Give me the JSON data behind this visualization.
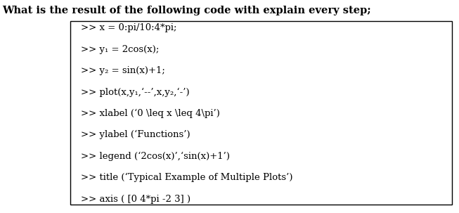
{
  "title_text": "What is the result of the following code with explain every step;",
  "title_fontsize": 10.5,
  "box_lines": [
    ">> x = 0:pi/10:4*pi;",
    ">> y₁ = 2cos(x);",
    ">> y₂ = sin(x)+1;",
    ">> plot(x,y₁,‘--’,x,y₂,‘-’)",
    ">> xlabel (‘0 \\leq x \\leq 4\\pi’)",
    ">> ylabel (‘Functions’)",
    ">> legend (‘2cos(x)’,‘sin(x)+1’)",
    ">> title (‘Typical Example of Multiple Plots’)",
    ">> axis ( [0 4*pi -2 3] )"
  ],
  "line_fontsize": 9.5,
  "font_family": "serif",
  "background_color": "#ffffff",
  "box_bg": "#ffffff",
  "box_edge": "#000000",
  "text_color": "#000000",
  "fig_width": 6.53,
  "fig_height": 3.03
}
